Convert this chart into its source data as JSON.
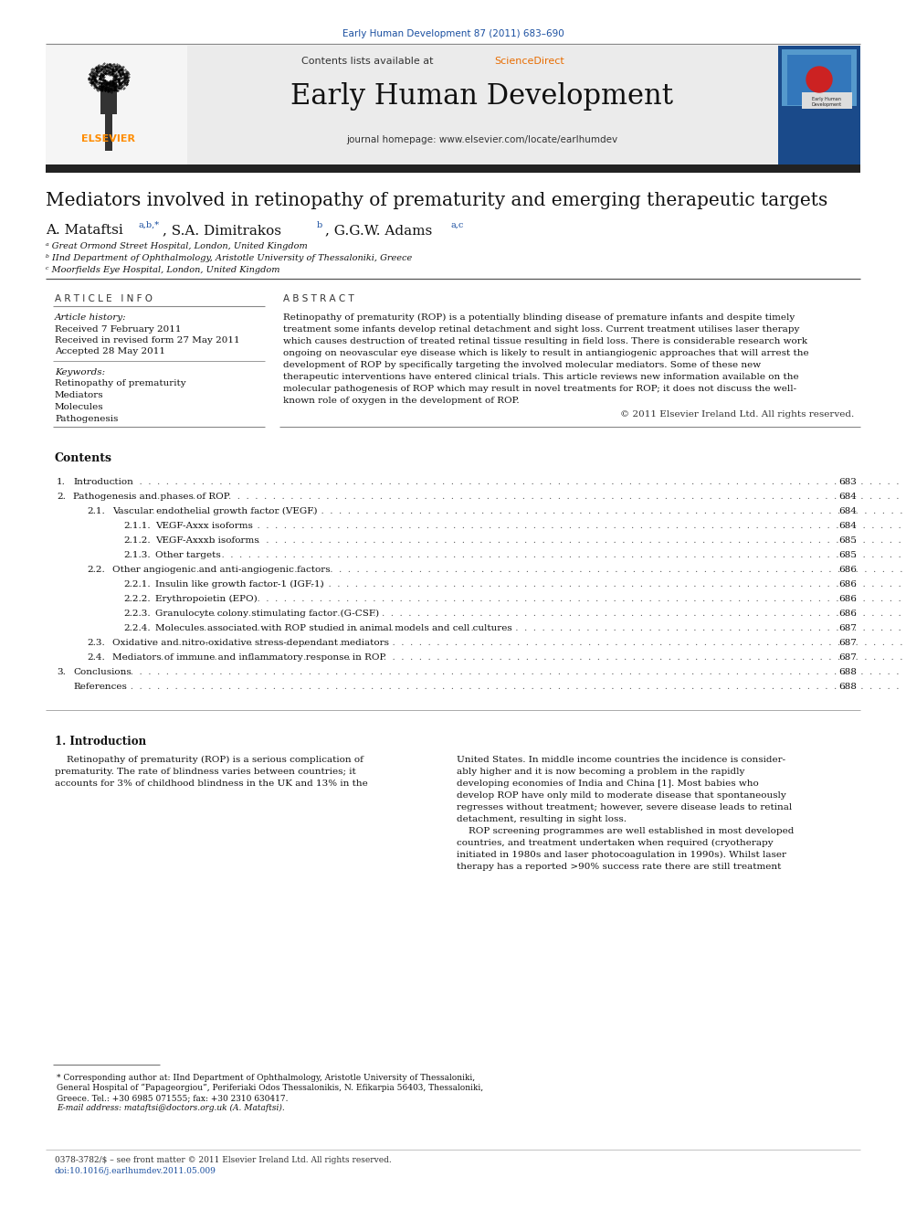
{
  "journal_ref": "Early Human Development 87 (2011) 683–690",
  "journal_name": "Early Human Development",
  "contents_available": "Contents lists available at ",
  "sciencedirect": "ScienceDirect",
  "journal_homepage": "journal homepage: www.elsevier.com/locate/earlhumdev",
  "paper_title": "Mediators involved in retinopathy of prematurity and emerging therapeutic targets",
  "author_line": "A. Mataftsi ",
  "author_sup1": "a,b,*",
  "author_mid": ", S.A. Dimitrakos ",
  "author_sup2": "b",
  "author_end": ", G.G.W. Adams ",
  "author_sup3": "a,c",
  "affil_a": "ᵃ Great Ormond Street Hospital, London, United Kingdom",
  "affil_b": "ᵇ IInd Department of Ophthalmology, Aristotle University of Thessaloniki, Greece",
  "affil_c": "ᶜ Moorfields Eye Hospital, London, United Kingdom",
  "article_info_header": "A R T I C L E   I N F O",
  "abstract_header": "A B S T R A C T",
  "article_history_label": "Article history:",
  "received": "Received 7 February 2011",
  "received_revised": "Received in revised form 27 May 2011",
  "accepted": "Accepted 28 May 2011",
  "keywords_label": "Keywords:",
  "keywords": [
    "Retinopathy of prematurity",
    "Mediators",
    "Molecules",
    "Pathogenesis"
  ],
  "abstract_lines": [
    "Retinopathy of prematurity (ROP) is a potentially blinding disease of premature infants and despite timely",
    "treatment some infants develop retinal detachment and sight loss. Current treatment utilises laser therapy",
    "which causes destruction of treated retinal tissue resulting in field loss. There is considerable research work",
    "ongoing on neovascular eye disease which is likely to result in antiangiogenic approaches that will arrest the",
    "development of ROP by specifically targeting the involved molecular mediators. Some of these new",
    "therapeutic interventions have entered clinical trials. This article reviews new information available on the",
    "molecular pathogenesis of ROP which may result in novel treatments for ROP; it does not discuss the well-",
    "known role of oxygen in the development of ROP."
  ],
  "copyright": "© 2011 Elsevier Ireland Ltd. All rights reserved.",
  "contents_title": "Contents",
  "toc": [
    {
      "num": "1.",
      "indent": 0,
      "text": "Introduction",
      "page": "683"
    },
    {
      "num": "2.",
      "indent": 0,
      "text": "Pathogenesis and phases of ROP",
      "page": "684"
    },
    {
      "num": "2.1.",
      "indent": 1,
      "text": "Vascular endothelial growth factor (VEGF)",
      "page": "684"
    },
    {
      "num": "2.1.1.",
      "indent": 2,
      "text": "VEGF-Axxx isoforms",
      "page": "684"
    },
    {
      "num": "2.1.2.",
      "indent": 2,
      "text": "VEGF-Axxxb isoforms",
      "page": "685"
    },
    {
      "num": "2.1.3.",
      "indent": 2,
      "text": "Other targets",
      "page": "685"
    },
    {
      "num": "2.2.",
      "indent": 1,
      "text": "Other angiogenic and anti-angiogenic factors",
      "page": "686"
    },
    {
      "num": "2.2.1.",
      "indent": 2,
      "text": "Insulin like growth factor-1 (IGF-1)",
      "page": "686"
    },
    {
      "num": "2.2.2.",
      "indent": 2,
      "text": "Erythropoietin (EPO)",
      "page": "686"
    },
    {
      "num": "2.2.3.",
      "indent": 2,
      "text": "Granulocyte colony stimulating factor (G-CSF)",
      "page": "686"
    },
    {
      "num": "2.2.4.",
      "indent": 2,
      "text": "Molecules associated with ROP studied in animal models and cell cultures",
      "page": "687"
    },
    {
      "num": "2.3.",
      "indent": 1,
      "text": "Oxidative and nitro-oxidative stress-dependant mediators",
      "page": "687"
    },
    {
      "num": "2.4.",
      "indent": 1,
      "text": "Mediators of immune and inflammatory response in ROP",
      "page": "687"
    },
    {
      "num": "3.",
      "indent": 0,
      "text": "Conclusions",
      "page": "688"
    },
    {
      "num": "",
      "indent": 0,
      "text": "References",
      "page": "688"
    }
  ],
  "intro_header": "1. Introduction",
  "intro_col1_lines": [
    "    Retinopathy of prematurity (ROP) is a serious complication of",
    "prematurity. The rate of blindness varies between countries; it",
    "accounts for 3% of childhood blindness in the UK and 13% in the"
  ],
  "intro_col2_lines": [
    "United States. In middle income countries the incidence is consider-",
    "ably higher and it is now becoming a problem in the rapidly",
    "developing economies of India and China [1]. Most babies who",
    "develop ROP have only mild to moderate disease that spontaneously",
    "regresses without treatment; however, severe disease leads to retinal",
    "detachment, resulting in sight loss.",
    "    ROP screening programmes are well established in most developed",
    "countries, and treatment undertaken when required (cryotherapy",
    "initiated in 1980s and laser photocoagulation in 1990s). Whilst laser",
    "therapy has a reported >90% success rate there are still treatment"
  ],
  "footnote_lines": [
    "* Corresponding author at: IInd Department of Ophthalmology, Aristotle University of Thessaloniki,",
    "General Hospital of “Papageorgiou”, Periferiaki Odos Thessalonikis, N. Efikarpia 56403, Thessaloniki,",
    "Greece. Tel.: +30 6985 071555; fax: +30 2310 630417.",
    "E-mail address: mataftsi@doctors.org.uk (A. Mataftsi)."
  ],
  "bottom_text1": "0378-3782/$ – see front matter © 2011 Elsevier Ireland Ltd. All rights reserved.",
  "bottom_text2": "doi:10.1016/j.earlhumdev.2011.05.009",
  "bg_color": "#ffffff",
  "gray_header_bg": "#ebebeb",
  "blue_link": "#1a4fa0",
  "orange_link": "#e86c00",
  "black_bar": "#222222",
  "cover_blue_dark": "#1a4a8a",
  "cover_blue_mid": "#3a7abf",
  "cover_red": "#cc2222",
  "separator_dark": "#444444",
  "separator_light": "#aaaaaa",
  "text_dark": "#111111",
  "text_mid": "#333333",
  "elsevier_orange": "#ff8c00"
}
